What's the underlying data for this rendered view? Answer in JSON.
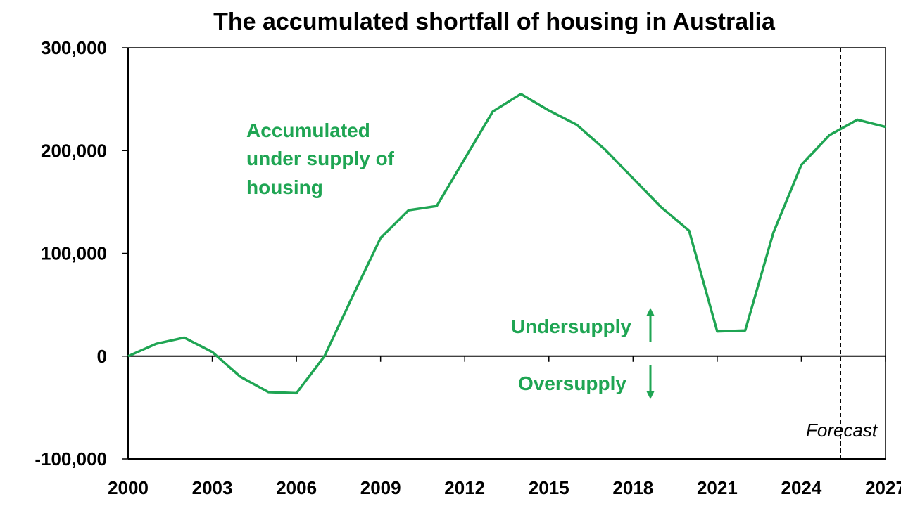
{
  "chart_data": {
    "type": "line",
    "title": "The accumulated shortfall of housing in Australia",
    "xlabel": "",
    "ylabel": "",
    "x": [
      2000,
      2001,
      2002,
      2003,
      2004,
      2005,
      2006,
      2007,
      2008,
      2009,
      2010,
      2011,
      2012,
      2013,
      2014,
      2015,
      2016,
      2017,
      2018,
      2019,
      2020,
      2021,
      2022,
      2023,
      2024,
      2025,
      2026,
      2027
    ],
    "series": [
      {
        "name": "",
        "color": "#1fa553",
        "values": [
          0,
          12000,
          18000,
          4000,
          -20000,
          -35000,
          -36000,
          0,
          58000,
          115000,
          142000,
          146000,
          192000,
          238000,
          255000,
          239000,
          225000,
          201000,
          173000,
          145000,
          122000,
          24000,
          25000,
          120000,
          186000,
          215000,
          230000,
          223000
        ]
      }
    ],
    "xlim": [
      2000,
      2027
    ],
    "ylim": [
      -100000,
      300000
    ],
    "y_ticks": [
      -100000,
      0,
      100000,
      200000,
      300000
    ],
    "y_tick_labels": [
      "-100,000",
      "0",
      "100,000",
      "200,000",
      "300,000"
    ],
    "x_ticks": [
      2000,
      2003,
      2006,
      2009,
      2012,
      2015,
      2018,
      2021,
      2024,
      2027
    ],
    "x_tick_labels": [
      "2000",
      "2003",
      "2006",
      "2009",
      "2012",
      "2015",
      "2018",
      "2021",
      "2024",
      "2027"
    ],
    "forecast_start": 2025.4,
    "grid": false,
    "annotations": {
      "series_label_lines": [
        "Accumulated",
        "under supply of",
        "housing"
      ],
      "undersupply": "Undersupply",
      "oversupply": "Oversupply",
      "forecast": "Forecast"
    }
  }
}
